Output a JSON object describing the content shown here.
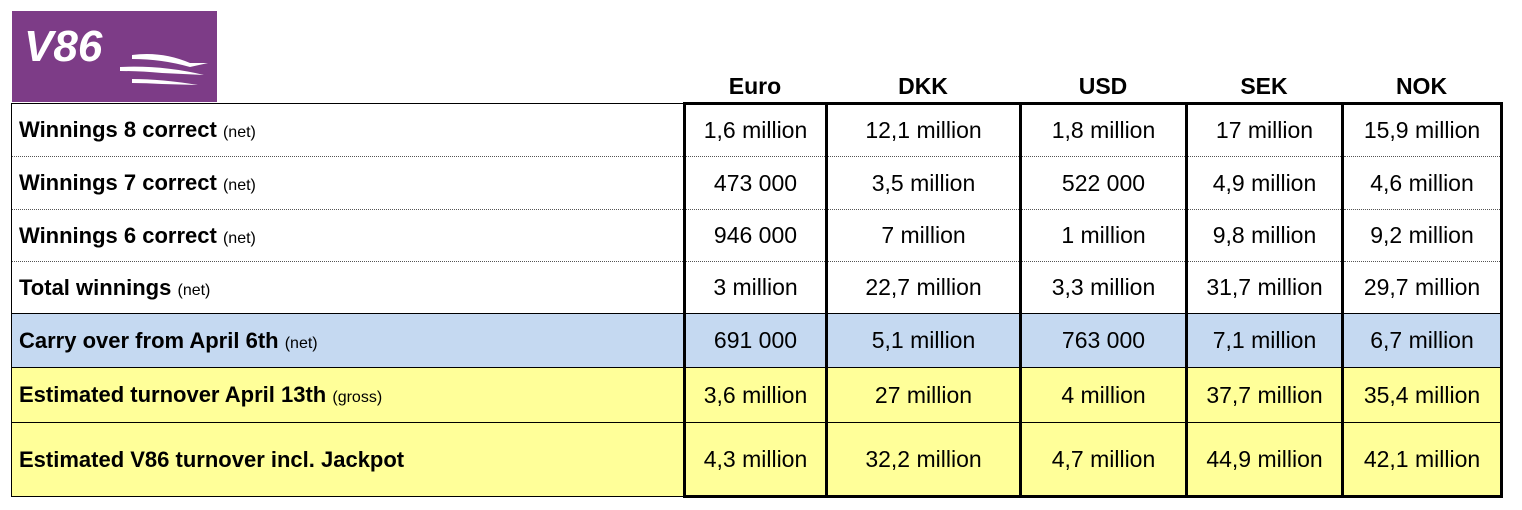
{
  "logo": {
    "text": "V86"
  },
  "columns": [
    "Euro",
    "DKK",
    "USD",
    "SEK",
    "NOK"
  ],
  "rows": [
    {
      "label": "Winnings 8 correct",
      "note": "(net)",
      "values": [
        "1,6 million",
        "12,1 million",
        "1,8 million",
        "17 million",
        "15,9 million"
      ]
    },
    {
      "label": "Winnings 7 correct",
      "note": "(net)",
      "values": [
        "473 000",
        "3,5 million",
        "522 000",
        "4,9 million",
        "4,6 million"
      ]
    },
    {
      "label": "Winnings 6 correct",
      "note": "(net)",
      "values": [
        "946 000",
        "7 million",
        "1 million",
        "9,8 million",
        "9,2 million"
      ]
    },
    {
      "label": "Total winnings",
      "note": "(net)",
      "values": [
        "3 million",
        "22,7 million",
        "3,3 million",
        "31,7 million",
        "29,7 million"
      ]
    },
    {
      "label": "Carry over from April 6th",
      "note": "(net)",
      "values": [
        "691 000",
        "5,1 million",
        "763 000",
        "7,1 million",
        "6,7 million"
      ]
    },
    {
      "label": "Estimated turnover April 13th",
      "note": "(gross)",
      "values": [
        "3,6 million",
        "27 million",
        "4 million",
        "37,7 million",
        "35,4 million"
      ]
    },
    {
      "label": "Estimated V86 turnover incl. Jackpot",
      "note": "",
      "values": [
        "4,3 million",
        "32,2 million",
        "4,7 million",
        "44,9 million",
        "42,1 million"
      ]
    }
  ],
  "colors": {
    "logo_bg": "#7d3c87",
    "carry_over_row": "#c5d9f1",
    "estimate_rows": "#ffff99"
  }
}
